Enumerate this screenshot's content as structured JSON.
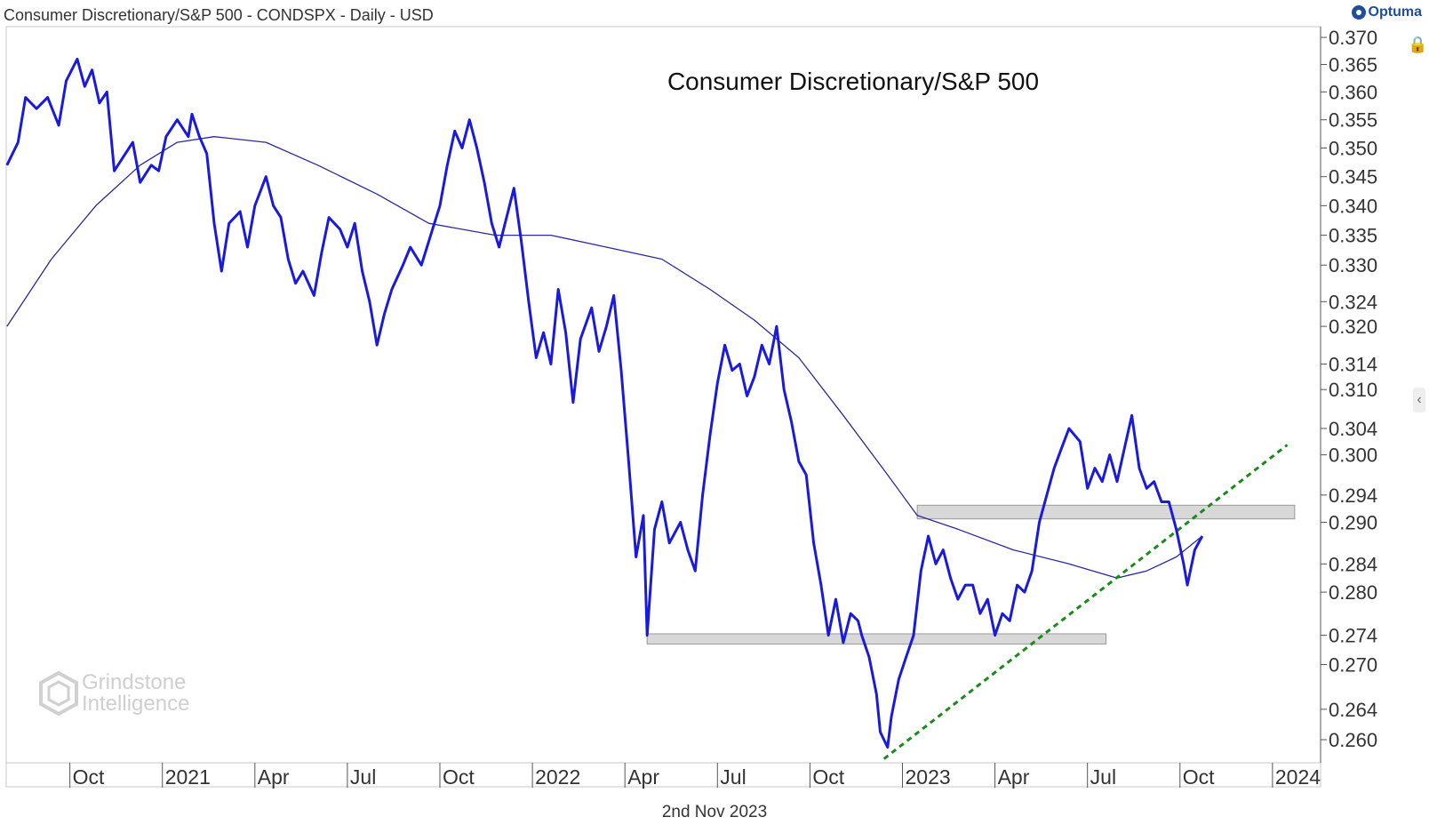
{
  "header": {
    "title": "Consumer Discretionary/S&P 500 - CONDSPX - Daily - USD",
    "brand": "Optuma"
  },
  "watermark": {
    "line1": "Grindstone",
    "line2": "Intelligence"
  },
  "footer": {
    "date": "2nd Nov 2023"
  },
  "colors": {
    "price": "#1a1adf",
    "ma": "#2a2a9a",
    "trend": "#1a8a1a",
    "zone": "#d8d8d8"
  },
  "chart_data": {
    "type": "line",
    "title": "Consumer Discretionary/S&P 500",
    "scale": "log",
    "ylim": [
      0.257,
      0.372
    ],
    "y_ticks": [
      "0.370",
      "0.365",
      "0.360",
      "0.355",
      "0.350",
      "0.345",
      "0.340",
      "0.335",
      "0.330",
      "0.324",
      "0.320",
      "0.314",
      "0.310",
      "0.304",
      "0.300",
      "0.294",
      "0.290",
      "0.284",
      "0.280",
      "0.274",
      "0.270",
      "0.264",
      "0.260"
    ],
    "x_ticks": [
      {
        "label": "Oct",
        "t": 2020.75
      },
      {
        "label": "2021",
        "t": 2021.0
      },
      {
        "label": "Apr",
        "t": 2021.25
      },
      {
        "label": "Jul",
        "t": 2021.5
      },
      {
        "label": "Oct",
        "t": 2021.75
      },
      {
        "label": "2022",
        "t": 2022.0
      },
      {
        "label": "Apr",
        "t": 2022.25
      },
      {
        "label": "Jul",
        "t": 2022.5
      },
      {
        "label": "Oct",
        "t": 2022.75
      },
      {
        "label": "2023",
        "t": 2023.0
      },
      {
        "label": "Apr",
        "t": 2023.25
      },
      {
        "label": "Jul",
        "t": 2023.5
      },
      {
        "label": "Oct",
        "t": 2023.75
      },
      {
        "label": "2024",
        "t": 2024.0
      }
    ],
    "xlim": [
      2020.578,
      2024.13
    ],
    "series": [
      {
        "name": "Consumer Discretionary/S&P 500 ratio",
        "points": [
          [
            2020.58,
            0.347
          ],
          [
            2020.61,
            0.351
          ],
          [
            2020.63,
            0.359
          ],
          [
            2020.66,
            0.357
          ],
          [
            2020.69,
            0.359
          ],
          [
            2020.72,
            0.354
          ],
          [
            2020.74,
            0.362
          ],
          [
            2020.77,
            0.366
          ],
          [
            2020.79,
            0.361
          ],
          [
            2020.81,
            0.364
          ],
          [
            2020.83,
            0.358
          ],
          [
            2020.85,
            0.36
          ],
          [
            2020.87,
            0.346
          ],
          [
            2020.89,
            0.348
          ],
          [
            2020.92,
            0.351
          ],
          [
            2020.94,
            0.344
          ],
          [
            2020.97,
            0.347
          ],
          [
            2020.99,
            0.346
          ],
          [
            2021.01,
            0.352
          ],
          [
            2021.04,
            0.355
          ],
          [
            2021.07,
            0.352
          ],
          [
            2021.08,
            0.356
          ],
          [
            2021.1,
            0.352
          ],
          [
            2021.12,
            0.349
          ],
          [
            2021.14,
            0.337
          ],
          [
            2021.16,
            0.329
          ],
          [
            2021.18,
            0.337
          ],
          [
            2021.21,
            0.339
          ],
          [
            2021.23,
            0.333
          ],
          [
            2021.25,
            0.34
          ],
          [
            2021.28,
            0.345
          ],
          [
            2021.3,
            0.34
          ],
          [
            2021.32,
            0.338
          ],
          [
            2021.34,
            0.331
          ],
          [
            2021.36,
            0.327
          ],
          [
            2021.38,
            0.329
          ],
          [
            2021.41,
            0.325
          ],
          [
            2021.43,
            0.332
          ],
          [
            2021.45,
            0.338
          ],
          [
            2021.48,
            0.336
          ],
          [
            2021.5,
            0.333
          ],
          [
            2021.52,
            0.337
          ],
          [
            2021.54,
            0.329
          ],
          [
            2021.56,
            0.324
          ],
          [
            2021.58,
            0.317
          ],
          [
            2021.6,
            0.322
          ],
          [
            2021.62,
            0.326
          ],
          [
            2021.65,
            0.33
          ],
          [
            2021.67,
            0.333
          ],
          [
            2021.7,
            0.33
          ],
          [
            2021.73,
            0.336
          ],
          [
            2021.75,
            0.34
          ],
          [
            2021.77,
            0.347
          ],
          [
            2021.79,
            0.353
          ],
          [
            2021.81,
            0.35
          ],
          [
            2021.83,
            0.355
          ],
          [
            2021.85,
            0.35
          ],
          [
            2021.87,
            0.344
          ],
          [
            2021.89,
            0.337
          ],
          [
            2021.91,
            0.333
          ],
          [
            2021.93,
            0.338
          ],
          [
            2021.95,
            0.343
          ],
          [
            2021.97,
            0.334
          ],
          [
            2021.99,
            0.324
          ],
          [
            2022.01,
            0.315
          ],
          [
            2022.03,
            0.319
          ],
          [
            2022.05,
            0.314
          ],
          [
            2022.07,
            0.326
          ],
          [
            2022.09,
            0.319
          ],
          [
            2022.11,
            0.308
          ],
          [
            2022.13,
            0.318
          ],
          [
            2022.16,
            0.323
          ],
          [
            2022.18,
            0.316
          ],
          [
            2022.2,
            0.32
          ],
          [
            2022.22,
            0.325
          ],
          [
            2022.24,
            0.313
          ],
          [
            2022.26,
            0.299
          ],
          [
            2022.28,
            0.285
          ],
          [
            2022.3,
            0.291
          ],
          [
            2022.31,
            0.274
          ],
          [
            2022.33,
            0.289
          ],
          [
            2022.35,
            0.293
          ],
          [
            2022.37,
            0.287
          ],
          [
            2022.4,
            0.29
          ],
          [
            2022.42,
            0.286
          ],
          [
            2022.44,
            0.283
          ],
          [
            2022.46,
            0.294
          ],
          [
            2022.48,
            0.303
          ],
          [
            2022.5,
            0.311
          ],
          [
            2022.52,
            0.317
          ],
          [
            2022.54,
            0.313
          ],
          [
            2022.56,
            0.314
          ],
          [
            2022.58,
            0.309
          ],
          [
            2022.6,
            0.312
          ],
          [
            2022.62,
            0.317
          ],
          [
            2022.64,
            0.314
          ],
          [
            2022.66,
            0.32
          ],
          [
            2022.68,
            0.31
          ],
          [
            2022.7,
            0.305
          ],
          [
            2022.72,
            0.299
          ],
          [
            2022.74,
            0.297
          ],
          [
            2022.76,
            0.287
          ],
          [
            2022.78,
            0.281
          ],
          [
            2022.8,
            0.274
          ],
          [
            2022.82,
            0.279
          ],
          [
            2022.84,
            0.273
          ],
          [
            2022.86,
            0.277
          ],
          [
            2022.88,
            0.276
          ],
          [
            2022.89,
            0.274
          ],
          [
            2022.91,
            0.271
          ],
          [
            2022.93,
            0.266
          ],
          [
            2022.94,
            0.261
          ],
          [
            2022.96,
            0.259
          ],
          [
            2022.97,
            0.263
          ],
          [
            2022.99,
            0.268
          ],
          [
            2023.01,
            0.271
          ],
          [
            2023.03,
            0.274
          ],
          [
            2023.05,
            0.283
          ],
          [
            2023.07,
            0.288
          ],
          [
            2023.09,
            0.284
          ],
          [
            2023.11,
            0.286
          ],
          [
            2023.13,
            0.282
          ],
          [
            2023.15,
            0.279
          ],
          [
            2023.17,
            0.281
          ],
          [
            2023.19,
            0.281
          ],
          [
            2023.21,
            0.277
          ],
          [
            2023.23,
            0.279
          ],
          [
            2023.25,
            0.274
          ],
          [
            2023.27,
            0.277
          ],
          [
            2023.29,
            0.276
          ],
          [
            2023.31,
            0.281
          ],
          [
            2023.33,
            0.28
          ],
          [
            2023.35,
            0.283
          ],
          [
            2023.37,
            0.29
          ],
          [
            2023.39,
            0.294
          ],
          [
            2023.41,
            0.298
          ],
          [
            2023.43,
            0.301
          ],
          [
            2023.45,
            0.304
          ],
          [
            2023.48,
            0.302
          ],
          [
            2023.5,
            0.295
          ],
          [
            2023.52,
            0.298
          ],
          [
            2023.54,
            0.296
          ],
          [
            2023.56,
            0.3
          ],
          [
            2023.58,
            0.296
          ],
          [
            2023.6,
            0.301
          ],
          [
            2023.62,
            0.306
          ],
          [
            2023.64,
            0.298
          ],
          [
            2023.66,
            0.295
          ],
          [
            2023.68,
            0.296
          ],
          [
            2023.7,
            0.293
          ],
          [
            2023.72,
            0.293
          ],
          [
            2023.74,
            0.289
          ],
          [
            2023.76,
            0.284
          ],
          [
            2023.77,
            0.281
          ],
          [
            2023.79,
            0.286
          ],
          [
            2023.81,
            0.288
          ]
        ]
      },
      {
        "name": "Moving average",
        "points": [
          [
            2020.58,
            0.32
          ],
          [
            2020.7,
            0.331
          ],
          [
            2020.82,
            0.34
          ],
          [
            2020.94,
            0.347
          ],
          [
            2021.04,
            0.351
          ],
          [
            2021.14,
            0.352
          ],
          [
            2021.28,
            0.351
          ],
          [
            2021.42,
            0.347
          ],
          [
            2021.58,
            0.342
          ],
          [
            2021.72,
            0.337
          ],
          [
            2021.9,
            0.335
          ],
          [
            2022.05,
            0.335
          ],
          [
            2022.2,
            0.333
          ],
          [
            2022.35,
            0.331
          ],
          [
            2022.48,
            0.326
          ],
          [
            2022.6,
            0.321
          ],
          [
            2022.72,
            0.315
          ],
          [
            2022.84,
            0.306
          ],
          [
            2022.96,
            0.297
          ],
          [
            2023.04,
            0.291
          ],
          [
            2023.15,
            0.289
          ],
          [
            2023.3,
            0.286
          ],
          [
            2023.45,
            0.284
          ],
          [
            2023.58,
            0.282
          ],
          [
            2023.66,
            0.283
          ],
          [
            2023.74,
            0.285
          ],
          [
            2023.81,
            0.288
          ]
        ]
      },
      {
        "name": "Trendline",
        "points": [
          [
            2022.95,
            0.2575
          ],
          [
            2024.04,
            0.3015
          ]
        ]
      }
    ],
    "zones": [
      {
        "name": "Resistance zone",
        "x_start": 2023.04,
        "x_end": 2024.06,
        "y_low": 0.2905,
        "y_high": 0.2925
      },
      {
        "name": "Support zone",
        "x_start": 2022.31,
        "x_end": 2023.55,
        "y_low": 0.2728,
        "y_high": 0.2742
      }
    ]
  }
}
